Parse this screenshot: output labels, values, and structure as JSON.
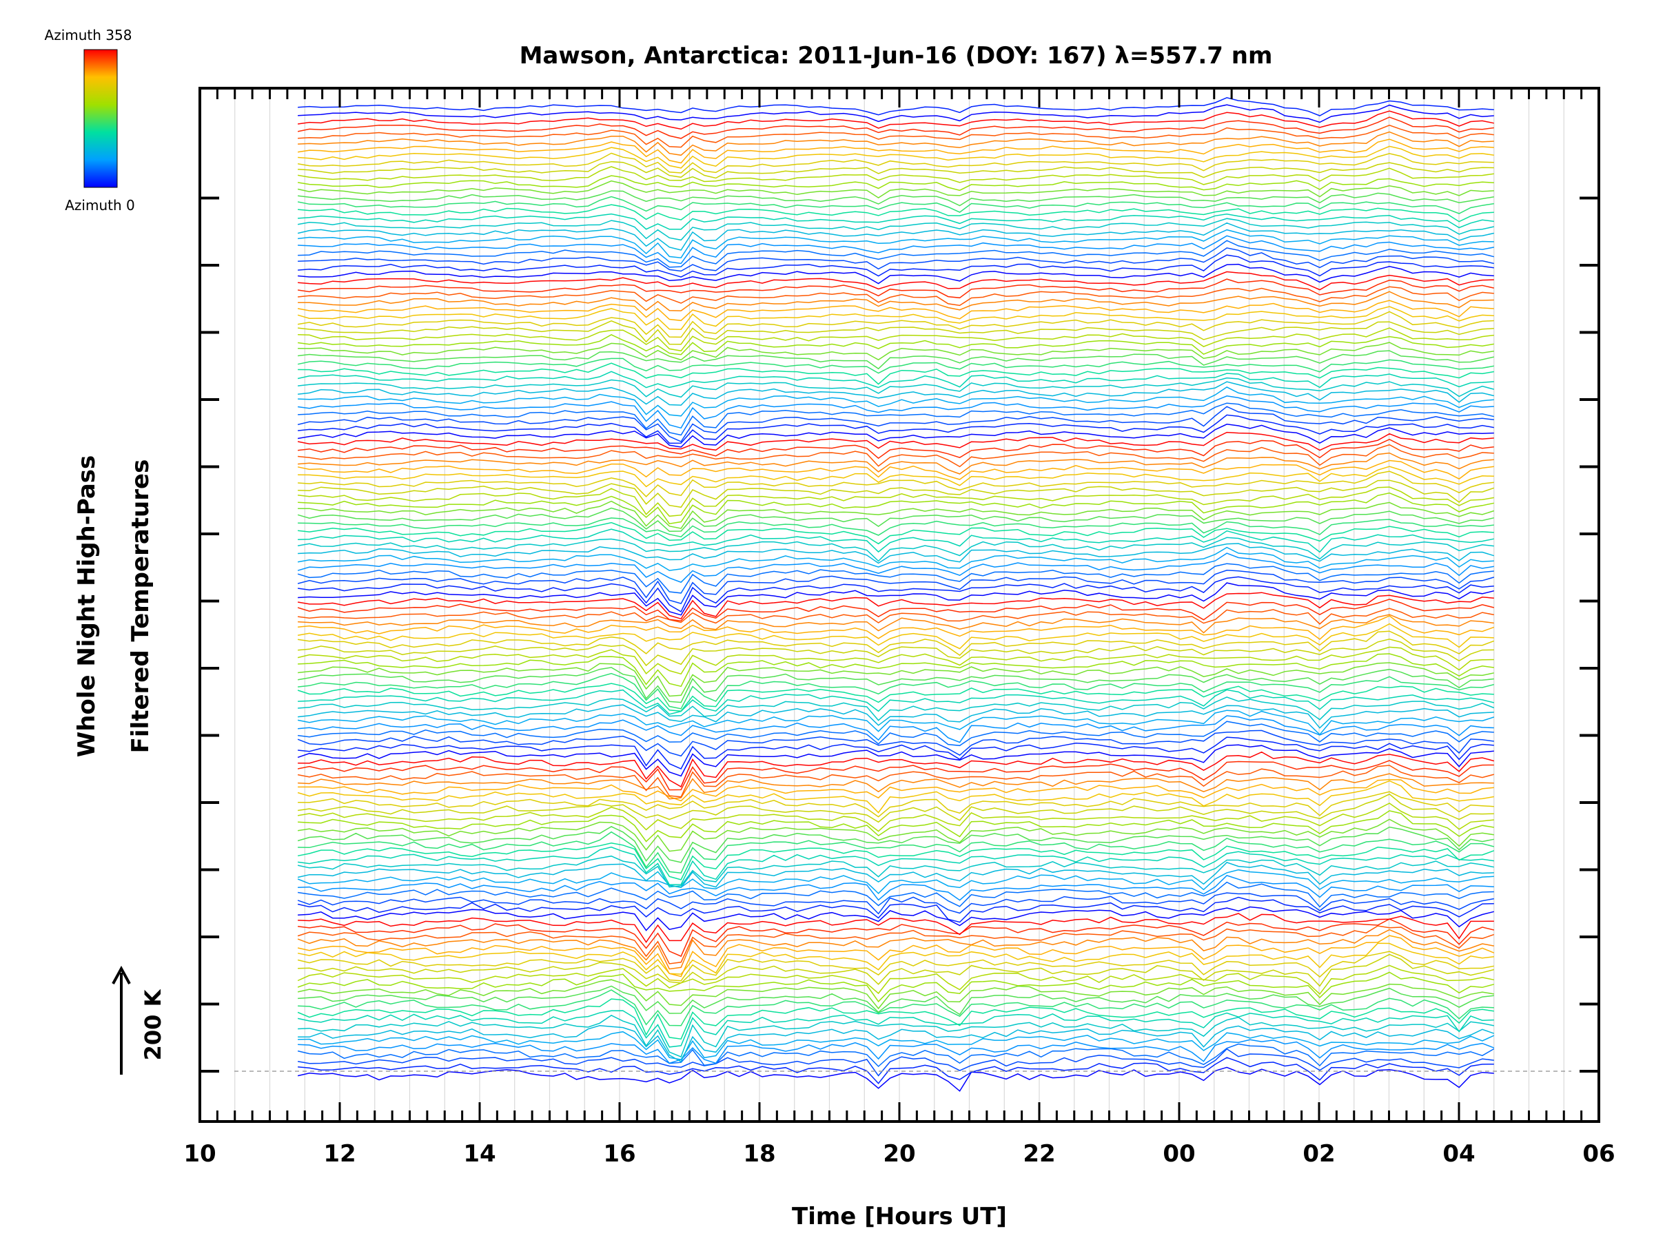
{
  "chart_data": {
    "type": "line",
    "title": "Mawson, Antarctica: 2011-Jun-16 (DOY: 167) λ=557.7 nm",
    "xlabel": "Time [Hours UT]",
    "ylabel_lines": [
      "Whole Night High-Pass",
      "Filtered Temperatures"
    ],
    "x_ticks": [
      "10",
      "12",
      "14",
      "16",
      "18",
      "20",
      "22",
      "00",
      "02",
      "04",
      "06"
    ],
    "x_range_hours": [
      10,
      30
    ],
    "data_range_hours": [
      11.4,
      28.5
    ],
    "grid": true,
    "colorbar": {
      "top_label": "Azimuth 358",
      "bottom_label": "Azimuth 0"
    },
    "scale_bar": {
      "label": "200 K",
      "value_K": 200
    },
    "series_description": "Stacked high-pass filtered temperature traces, one per azimuth sample, colored by azimuth (0 = blue to 358 = red) along a rainbow scale.",
    "events": [
      {
        "x": 16.8,
        "depth": 1.0
      },
      {
        "x": 17.3,
        "depth": 0.6
      },
      {
        "x": 16.4,
        "depth": 0.5
      },
      {
        "x": 19.7,
        "depth": 0.35
      },
      {
        "x": 20.8,
        "depth": 0.4
      },
      {
        "x": 24.4,
        "depth": 0.3
      },
      {
        "x": 26.0,
        "depth": 0.3
      },
      {
        "x": 28.0,
        "depth": 0.3
      }
    ],
    "bumps": [
      {
        "x": 15.9,
        "height": 0.5
      },
      {
        "x": 24.7,
        "height": 0.5
      },
      {
        "x": 27.0,
        "height": 0.6
      },
      {
        "x": 25.2,
        "height": 0.3
      }
    ],
    "series_count": 140,
    "colors": {
      "azimuth_scale": [
        "#0000ff",
        "#00a0ff",
        "#00e0a0",
        "#a0e000",
        "#ffc000",
        "#ff0000"
      ],
      "axis": "#000000",
      "grid": "#d9d9d9",
      "baseline": "#a0a0a0"
    }
  }
}
